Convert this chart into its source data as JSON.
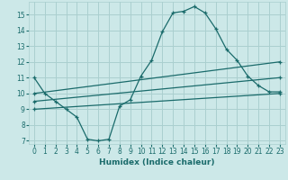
{
  "xlabel": "Humidex (Indice chaleur)",
  "background_color": "#cce8e8",
  "grid_color": "#aacfcf",
  "line_color": "#1a6b6b",
  "xlim": [
    -0.5,
    23.5
  ],
  "ylim": [
    6.8,
    15.8
  ],
  "yticks": [
    7,
    8,
    9,
    10,
    11,
    12,
    13,
    14,
    15
  ],
  "xticks": [
    0,
    1,
    2,
    3,
    4,
    5,
    6,
    7,
    8,
    9,
    10,
    11,
    12,
    13,
    14,
    15,
    16,
    17,
    18,
    19,
    20,
    21,
    22,
    23
  ],
  "curve1_x": [
    0,
    1,
    2,
    3,
    4,
    5,
    6,
    7,
    8,
    9,
    10,
    11,
    12,
    13,
    14,
    15,
    16,
    17,
    18,
    19,
    20,
    21,
    22,
    23
  ],
  "curve1_y": [
    11.0,
    10.0,
    9.5,
    9.0,
    8.5,
    7.1,
    7.0,
    7.1,
    9.2,
    9.6,
    11.1,
    12.1,
    13.9,
    15.1,
    15.2,
    15.5,
    15.1,
    14.1,
    12.8,
    12.1,
    11.1,
    10.5,
    10.1,
    10.1
  ],
  "curve2_x": [
    0,
    23
  ],
  "curve2_y": [
    10.0,
    12.0
  ],
  "curve3_x": [
    0,
    23
  ],
  "curve3_y": [
    9.5,
    11.0
  ],
  "curve4_x": [
    0,
    23
  ],
  "curve4_y": [
    9.0,
    10.0
  ]
}
